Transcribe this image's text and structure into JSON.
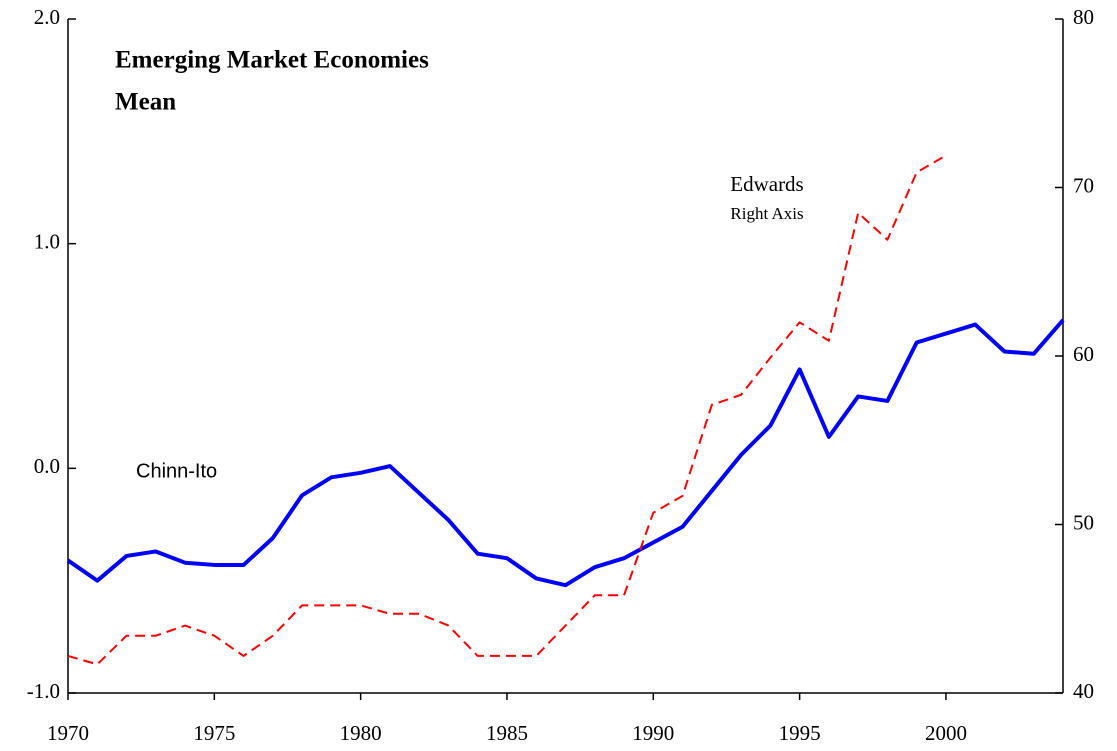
{
  "chart_data": {
    "type": "line",
    "title": "Emerging Market Economies",
    "subtitle": "Mean",
    "annotations": [
      "Chinn-Ito",
      "Edwards",
      "Right Axis"
    ],
    "x": [
      1970,
      1971,
      1972,
      1973,
      1974,
      1975,
      1976,
      1977,
      1978,
      1979,
      1980,
      1981,
      1982,
      1983,
      1984,
      1985,
      1986,
      1987,
      1988,
      1989,
      1990,
      1991,
      1992,
      1993,
      1994,
      1995,
      1996,
      1997,
      1998,
      1999,
      2000,
      2001,
      2002,
      2003,
      2004
    ],
    "xlim": [
      1970,
      2004
    ],
    "xticks": [
      1970,
      1975,
      1980,
      1985,
      1990,
      1995,
      2000
    ],
    "ylim": [
      -1,
      2
    ],
    "yticks": [
      {
        "value": -1,
        "label": "-1.0"
      },
      {
        "value": 0,
        "label": "0.0"
      },
      {
        "value": 1,
        "label": "1.0"
      },
      {
        "value": 2,
        "label": "2.0"
      }
    ],
    "y2lim": [
      40,
      80
    ],
    "y2ticks": [
      40,
      50,
      60,
      70,
      80
    ],
    "series": [
      {
        "name": "Chinn-Ito",
        "color": "#0000ff",
        "style": "solid",
        "values": [
          -0.41,
          -0.5,
          -0.39,
          -0.37,
          -0.42,
          -0.43,
          -0.43,
          -0.31,
          -0.12,
          -0.04,
          -0.02,
          0.01,
          -0.11,
          -0.23,
          -0.38,
          -0.4,
          -0.49,
          -0.52,
          -0.44,
          -0.4,
          -0.33,
          -0.26,
          -0.1,
          0.06,
          0.19,
          0.44,
          0.14,
          0.32,
          0.3,
          0.56,
          0.6,
          0.64,
          0.52,
          0.51,
          0.66
        ]
      },
      {
        "name": "Edwards",
        "color": "#ff0000",
        "style": "dashed",
        "axis": "y2",
        "values": [
          42.2,
          41.7,
          43.4,
          43.4,
          44.0,
          43.4,
          42.2,
          43.4,
          45.2,
          45.2,
          45.2,
          44.7,
          44.7,
          44.0,
          42.2,
          42.2,
          42.2,
          44.0,
          45.8,
          45.8,
          50.7,
          51.7,
          57.1,
          57.7,
          59.9,
          62.0,
          60.9,
          68.5,
          66.9,
          70.9,
          71.9,
          null,
          null,
          null,
          null
        ]
      }
    ]
  }
}
